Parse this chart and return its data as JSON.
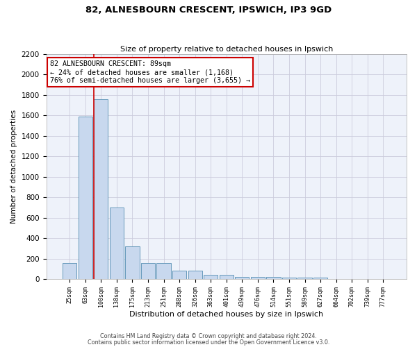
{
  "title1": "82, ALNESBOURN CRESCENT, IPSWICH, IP3 9GD",
  "title2": "Size of property relative to detached houses in Ipswich",
  "xlabel": "Distribution of detached houses by size in Ipswich",
  "ylabel": "Number of detached properties",
  "bar_labels": [
    "25sqm",
    "63sqm",
    "100sqm",
    "138sqm",
    "175sqm",
    "213sqm",
    "251sqm",
    "288sqm",
    "326sqm",
    "363sqm",
    "401sqm",
    "439sqm",
    "476sqm",
    "514sqm",
    "551sqm",
    "589sqm",
    "627sqm",
    "664sqm",
    "702sqm",
    "739sqm",
    "777sqm"
  ],
  "bar_values": [
    160,
    1590,
    1760,
    700,
    320,
    155,
    155,
    85,
    85,
    45,
    45,
    25,
    20,
    20,
    15,
    15,
    15,
    0,
    0,
    0,
    0
  ],
  "bar_color": "#c8d8ee",
  "bar_edge_color": "#6699bb",
  "ylim": [
    0,
    2200
  ],
  "yticks": [
    0,
    200,
    400,
    600,
    800,
    1000,
    1200,
    1400,
    1600,
    1800,
    2000,
    2200
  ],
  "red_line_index": 2,
  "annotation_text": "82 ALNESBOURN CRESCENT: 89sqm\n← 24% of detached houses are smaller (1,168)\n76% of semi-detached houses are larger (3,655) →",
  "annotation_box_color": "#ffffff",
  "annotation_box_edge": "#cc0000",
  "footer1": "Contains HM Land Registry data © Crown copyright and database right 2024.",
  "footer2": "Contains public sector information licensed under the Open Government Licence v3.0.",
  "bg_color": "#eef2fa",
  "grid_color": "#ccccdd"
}
